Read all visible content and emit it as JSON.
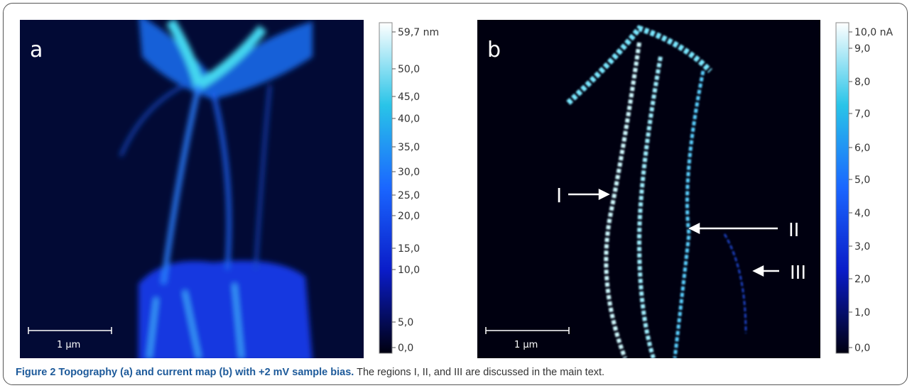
{
  "panels": [
    {
      "label": "a",
      "scale_bar": "1 µm",
      "colorbar": [
        "59,7 nm",
        "50,0",
        "45,0",
        "40,0",
        "35,0",
        "30,0",
        "25,0",
        "20,0",
        "15,0",
        "10,0",
        "5,0",
        "0,0"
      ]
    },
    {
      "label": "b",
      "scale_bar": "1 µm",
      "colorbar": [
        "10,0 nA",
        "9,0",
        "8,0",
        "7,0",
        "6,0",
        "5,0",
        "4,0",
        "3,0",
        "2,0",
        "1,0",
        "0,0"
      ],
      "annotations": [
        "I",
        "II",
        "III"
      ]
    }
  ],
  "caption": {
    "title": "Figure 2 Topography (a) and current map (b) with +2 mV sample bias.",
    "text": "The regions I, II, and III are discussed in the main text."
  }
}
